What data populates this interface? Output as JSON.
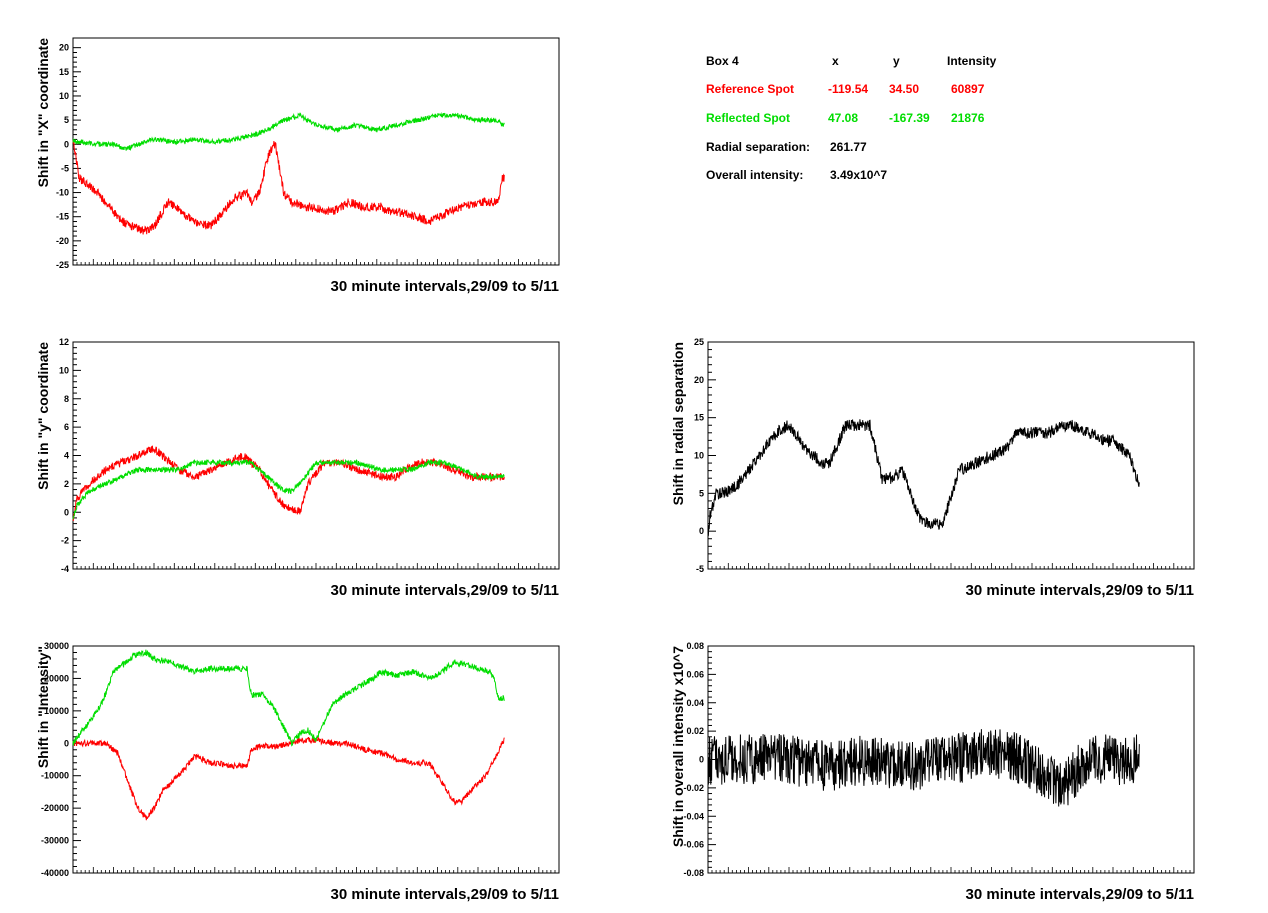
{
  "info_box": {
    "header": {
      "label": "Box 4",
      "x": "x",
      "y": "y",
      "intensity": "Intensity"
    },
    "reference": {
      "label": "Reference Spot",
      "x": "-119.54",
      "y": "34.50",
      "intensity": "60897",
      "color": "#ff0000"
    },
    "reflected": {
      "label": "Reflected Spot",
      "x": "47.08",
      "y": "-167.39",
      "intensity": "21876",
      "color": "#00dd00"
    },
    "radial": {
      "label": "Radial separation:",
      "value": "261.77"
    },
    "overall": {
      "label": "Overall intensity:",
      "value": "3.49x10^7"
    }
  },
  "chart_data": [
    {
      "id": "x-shift",
      "type": "line",
      "ylabel": "Shift in \"X\" coordinate",
      "xlabel": "30 minute intervals,29/09 to 5/11",
      "ylim": [
        -25,
        22
      ],
      "yticks": [
        -25,
        -20,
        -15,
        -10,
        -5,
        0,
        5,
        10,
        15,
        20
      ],
      "xlim": [
        0,
        1200
      ],
      "noise_seed": 11,
      "series": [
        {
          "color": "#ff0000",
          "noise": 0.9,
          "x": [
            0,
            15,
            60,
            120,
            180,
            200,
            235,
            300,
            340,
            400,
            430,
            440,
            460,
            480,
            495,
            500,
            520,
            540,
            580,
            640,
            680,
            720,
            760,
            780,
            800,
            850,
            880,
            905,
            930,
            960,
            1000,
            1050,
            1060,
            1065
          ],
          "values": [
            1,
            -7,
            -10,
            -16,
            -18,
            -17,
            -12,
            -16,
            -17,
            -11,
            -10,
            -12,
            -10,
            -3,
            0,
            0,
            -10,
            -12,
            -13,
            -14,
            -12,
            -13,
            -13,
            -14,
            -14,
            -15,
            -16,
            -15,
            -14,
            -13,
            -12,
            -12,
            -7,
            -7
          ]
        },
        {
          "color": "#00dd00",
          "noise": 0.5,
          "x": [
            0,
            20,
            60,
            100,
            130,
            160,
            200,
            250,
            300,
            350,
            400,
            450,
            480,
            520,
            560,
            600,
            650,
            700,
            750,
            800,
            850,
            900,
            950,
            1000,
            1050,
            1060,
            1065
          ],
          "values": [
            0.5,
            0.5,
            0,
            0,
            -1,
            0,
            1,
            0.5,
            1,
            0.5,
            1,
            2,
            3,
            5,
            6,
            4,
            3,
            4,
            3,
            4,
            5,
            6,
            6,
            5,
            5,
            4,
            4
          ]
        }
      ]
    },
    {
      "id": "y-shift",
      "type": "line",
      "ylabel": "Shift in \"y\" coordinate",
      "xlabel": "30 minute intervals,29/09 to 5/11",
      "ylim": [
        -4,
        12
      ],
      "yticks": [
        -4,
        -2,
        0,
        2,
        4,
        6,
        8,
        10,
        12
      ],
      "xlim": [
        0,
        1200
      ],
      "noise_seed": 23,
      "series": [
        {
          "color": "#ff0000",
          "noise": 0.28,
          "x": [
            0,
            10,
            40,
            80,
            120,
            160,
            200,
            240,
            260,
            300,
            340,
            380,
            420,
            440,
            460,
            480,
            520,
            560,
            580,
            620,
            660,
            700,
            760,
            800,
            820,
            860,
            900,
            940,
            980,
            1020,
            1060,
            1065
          ],
          "values": [
            -0.5,
            1,
            2,
            3,
            3.5,
            4,
            4.5,
            3.5,
            3,
            2.5,
            3,
            3.5,
            4,
            3.5,
            3,
            2,
            0.5,
            0,
            2,
            3.5,
            3.5,
            3,
            2.5,
            2.5,
            3,
            3.5,
            3.5,
            3,
            2.5,
            2.5,
            2.5,
            2.5
          ]
        },
        {
          "color": "#00dd00",
          "noise": 0.18,
          "x": [
            0,
            10,
            40,
            80,
            120,
            160,
            200,
            260,
            300,
            340,
            400,
            440,
            460,
            480,
            520,
            540,
            560,
            600,
            640,
            700,
            760,
            800,
            840,
            880,
            920,
            960,
            1000,
            1040,
            1060,
            1065
          ],
          "values": [
            -0.5,
            0.5,
            1.5,
            2,
            2.5,
            3,
            3,
            3,
            3.5,
            3.5,
            3.5,
            3.5,
            3,
            2.5,
            1.5,
            1.5,
            2,
            3.5,
            3.5,
            3.5,
            3,
            3,
            3,
            3.5,
            3.5,
            3,
            2.5,
            2.5,
            2.5,
            2.5
          ]
        }
      ]
    },
    {
      "id": "radial-separation",
      "type": "line",
      "ylabel": "Shift in radial separation",
      "xlabel": "30 minute intervals,29/09 to 5/11",
      "ylim": [
        -5,
        25
      ],
      "yticks": [
        -5,
        0,
        5,
        10,
        15,
        20,
        25
      ],
      "xlim": [
        0,
        1200
      ],
      "noise_seed": 37,
      "series": [
        {
          "color": "#000000",
          "noise": 0.8,
          "x": [
            0,
            5,
            20,
            40,
            70,
            100,
            140,
            170,
            200,
            240,
            280,
            300,
            340,
            360,
            400,
            430,
            450,
            480,
            500,
            520,
            540,
            580,
            620,
            660,
            700,
            740,
            760,
            800,
            840,
            880,
            900,
            940,
            980,
            1000,
            1040,
            1060,
            1065
          ],
          "values": [
            -1,
            2,
            5,
            5,
            6,
            8,
            11,
            13,
            14,
            11,
            9,
            9,
            14,
            14,
            14,
            7,
            7,
            8,
            5,
            2,
            1,
            1,
            8,
            9,
            10,
            11,
            13,
            13,
            13,
            14,
            14,
            13,
            12,
            12,
            10,
            7,
            6.5
          ]
        }
      ]
    },
    {
      "id": "intensity-shift",
      "type": "line",
      "ylabel": "Shift in \"Intensity\"",
      "xlabel": "30 minute intervals,29/09 to 5/11",
      "ylim": [
        -40000,
        30000
      ],
      "yticks": [
        -40000,
        -30000,
        -20000,
        -10000,
        0,
        10000,
        20000,
        30000
      ],
      "xlim": [
        0,
        1200
      ],
      "noise_seed": 53,
      "series": [
        {
          "color": "#ff0000",
          "noise": 900,
          "x": [
            0,
            40,
            80,
            110,
            130,
            160,
            180,
            200,
            220,
            260,
            300,
            340,
            400,
            430,
            440,
            460,
            500,
            540,
            560,
            600,
            640,
            680,
            720,
            760,
            800,
            840,
            880,
            900,
            940,
            960,
            980,
            1020,
            1040,
            1050,
            1060,
            1065
          ],
          "values": [
            0,
            0,
            0,
            -3000,
            -10000,
            -20000,
            -23000,
            -20000,
            -15000,
            -10000,
            -4000,
            -6000,
            -7000,
            -7000,
            -2000,
            -1000,
            -1000,
            0,
            1000,
            1000,
            0,
            0,
            -2000,
            -3000,
            -5000,
            -6000,
            -6000,
            -10000,
            -18000,
            -18000,
            -15000,
            -10000,
            -5000,
            -3000,
            0,
            1000
          ]
        },
        {
          "color": "#00dd00",
          "noise": 900,
          "x": [
            0,
            30,
            60,
            80,
            100,
            120,
            150,
            180,
            200,
            240,
            260,
            300,
            340,
            380,
            400,
            430,
            440,
            470,
            500,
            520,
            540,
            560,
            580,
            600,
            640,
            660,
            700,
            740,
            760,
            800,
            840,
            880,
            900,
            940,
            980,
            1030,
            1040,
            1050,
            1065
          ],
          "values": [
            0,
            5000,
            10000,
            15000,
            22000,
            24000,
            27000,
            28000,
            26000,
            25000,
            24000,
            22000,
            23000,
            23000,
            23000,
            23000,
            15000,
            15000,
            10000,
            5000,
            0,
            3000,
            4000,
            1000,
            12000,
            14000,
            17000,
            20000,
            22000,
            21000,
            22000,
            20000,
            21000,
            25000,
            24000,
            22000,
            20000,
            14000,
            14000
          ]
        }
      ]
    },
    {
      "id": "overall-intensity",
      "type": "line",
      "ylabel": "Shift in overall intensity x10^7",
      "xlabel": "30 minute intervals,29/09 to 5/11",
      "ylim": [
        -0.08,
        0.08
      ],
      "yticks": [
        -0.08,
        -0.06,
        -0.04,
        -0.02,
        0,
        0.02,
        0.04,
        0.06,
        0.08
      ],
      "xlim": [
        0,
        1200
      ],
      "noise_seed": 71,
      "series": [
        {
          "color": "#000000",
          "noise": 0.018,
          "x": [
            0,
            100,
            200,
            300,
            400,
            500,
            600,
            700,
            780,
            800,
            850,
            880,
            900,
            950,
            1000,
            1050,
            1065
          ],
          "values": [
            0,
            0,
            0,
            -0.005,
            0,
            -0.005,
            0,
            0.005,
            0,
            -0.005,
            -0.015,
            -0.02,
            -0.01,
            0,
            0,
            0,
            0
          ]
        }
      ]
    }
  ]
}
